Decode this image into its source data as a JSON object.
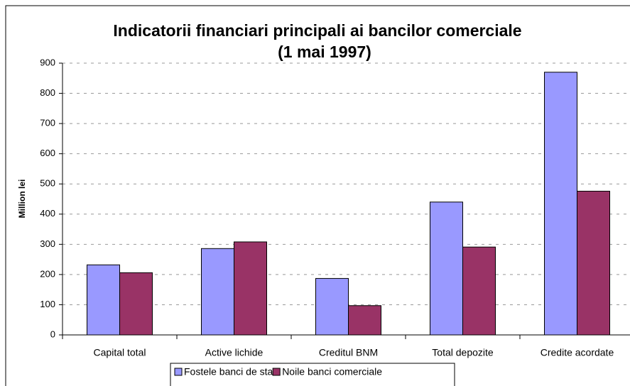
{
  "chart_data": {
    "type": "bar",
    "title": "Indicatorii financiari principali ai bancilor comerciale",
    "subtitle": "(1 mai 1997)",
    "y_label": "Million lei",
    "categories": [
      "Capital total",
      "Active lichide",
      "Creditul BNM",
      "Total depozite",
      "Credite acordate"
    ],
    "series": [
      {
        "name": "Fostele banci de stat",
        "color": "#9999ff",
        "values": [
          232,
          286,
          187,
          440,
          870
        ]
      },
      {
        "name": "Noile banci comerciale",
        "color": "#993366",
        "values": [
          206,
          308,
          97,
          291,
          476
        ]
      }
    ],
    "ylim": [
      0,
      900
    ],
    "yticks": [
      0,
      100,
      200,
      300,
      400,
      500,
      600,
      700,
      800,
      900
    ],
    "grid": true,
    "legend": "bottom"
  }
}
